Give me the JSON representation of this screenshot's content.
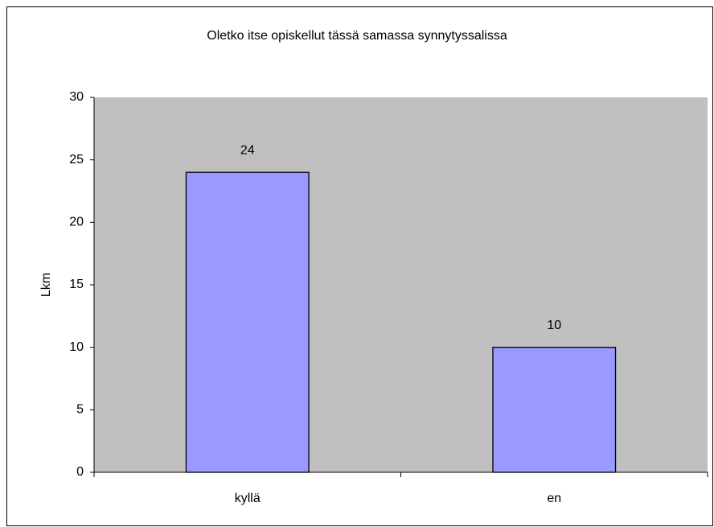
{
  "chart_data": {
    "type": "bar",
    "title": "Oletko itse opiskellut tässä samassa synnytyssalissa",
    "y_label": "Lkm",
    "categories": [
      "kyllä",
      "en"
    ],
    "values": [
      24,
      10
    ],
    "color": "#9999ff",
    "ylim": [
      0,
      30
    ],
    "yticks": [
      0,
      5,
      10,
      15,
      20,
      25,
      30
    ],
    "plot_background": "#c0c0c0"
  }
}
